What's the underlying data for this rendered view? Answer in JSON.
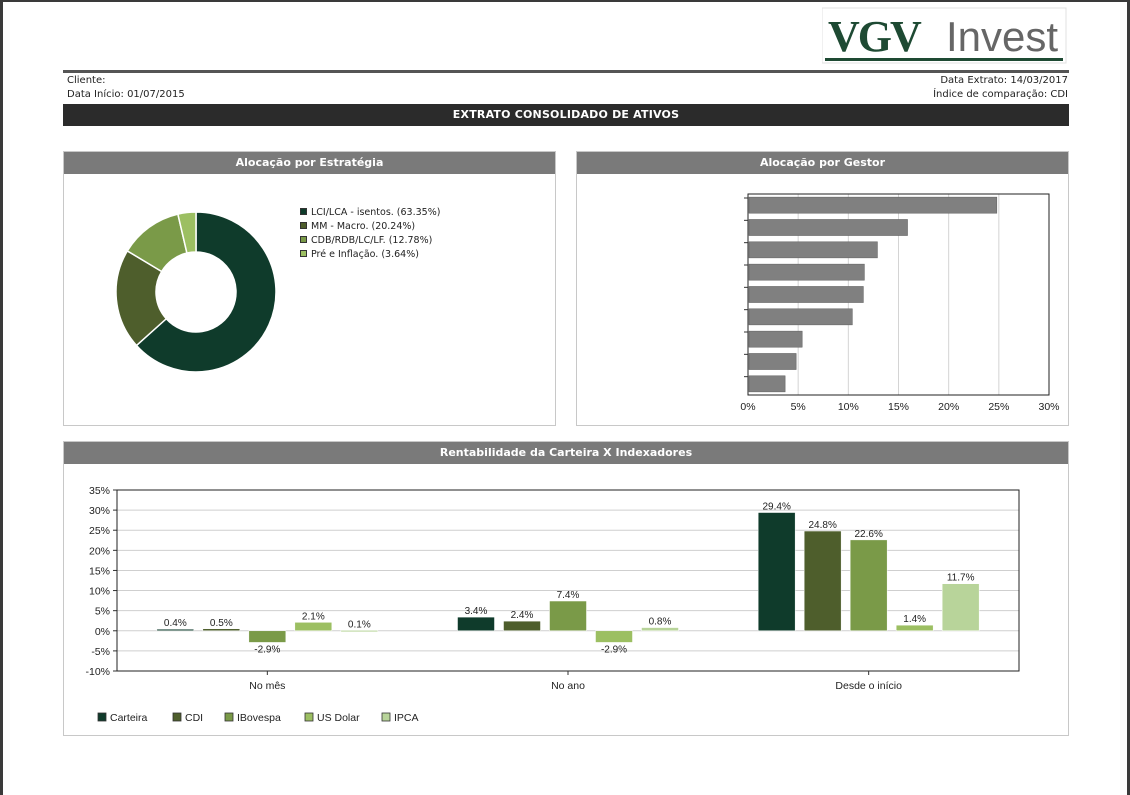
{
  "logo": {
    "brand": "VGV",
    "suffix": "Invest"
  },
  "header": {
    "client_label": "Cliente:",
    "start_date": "Data Início: 01/07/2015",
    "statement_date": "Data Extrato: 14/03/2017",
    "benchmark": "Índice de comparação: CDI"
  },
  "report_title": "EXTRATO CONSOLIDADO DE ATIVOS",
  "colors": {
    "dark_green": "#0f3b2b",
    "olive": "#4e5e2c",
    "mid_green": "#7a9a48",
    "light_green": "#9cbf62",
    "pale_green": "#b8d49a",
    "bar_gray": "#808080",
    "panel_header": "#7a7a7a"
  },
  "strategy_panel": {
    "title": "Alocação por Estratégia",
    "chart_data": {
      "type": "pie",
      "donut": true,
      "slices": [
        {
          "label": "LCI/LCA - isentos. (63.35%)",
          "value": 63.35,
          "color": "#0f3b2b"
        },
        {
          "label": "MM - Macro. (20.24%)",
          "value": 20.24,
          "color": "#4e5e2c"
        },
        {
          "label": "CDB/RDB/LC/LF. (12.78%)",
          "value": 12.78,
          "color": "#7a9a48"
        },
        {
          "label": "Pré e Inflação. (3.64%)",
          "value": 3.64,
          "color": "#9cbf62"
        }
      ]
    }
  },
  "manager_panel": {
    "title": "Alocação por Gestor",
    "chart_data": {
      "type": "bar",
      "orientation": "horizontal",
      "values": [
        24.8,
        15.9,
        12.9,
        11.6,
        11.5,
        10.4,
        5.4,
        4.8,
        3.7
      ],
      "xlim": [
        0,
        30
      ],
      "x_ticks": [
        "0%",
        "5%",
        "10%",
        "15%",
        "20%",
        "25%",
        "30%"
      ],
      "grid": true
    }
  },
  "returns_panel": {
    "title": "Rentabilidade da Carteira X Indexadores",
    "chart_data": {
      "type": "bar",
      "categories": [
        "No mês",
        "No ano",
        "Desde o início"
      ],
      "ylim": [
        -10,
        35
      ],
      "y_ticks": [
        "35%",
        "30%",
        "25%",
        "20%",
        "15%",
        "10%",
        "5%",
        "0%",
        "-5%",
        "-10%"
      ],
      "grid": true,
      "legend_position": "bottom-left",
      "series": [
        {
          "name": "Carteira",
          "values": [
            0.4,
            3.4,
            29.4
          ],
          "labels": [
            "0.4%",
            "3.4%",
            "29.4%"
          ],
          "color": "#0f3b2b"
        },
        {
          "name": "CDI",
          "values": [
            0.5,
            2.4,
            24.8
          ],
          "labels": [
            "0.5%",
            "2.4%",
            "24.8%"
          ],
          "color": "#4e5e2c"
        },
        {
          "name": "IBovespa",
          "values": [
            -2.9,
            7.4,
            22.6
          ],
          "labels": [
            "-2.9%",
            "7.4%",
            "22.6%"
          ],
          "color": "#7a9a48"
        },
        {
          "name": "US Dolar",
          "values": [
            2.1,
            -2.9,
            1.4
          ],
          "labels": [
            "2.1%",
            "-2.9%",
            "1.4%"
          ],
          "color": "#9cbf62"
        },
        {
          "name": "IPCA",
          "values": [
            0.1,
            0.8,
            11.7
          ],
          "labels": [
            "0.1%",
            "0.8%",
            "11.7%"
          ],
          "color": "#b8d49a"
        }
      ]
    }
  }
}
